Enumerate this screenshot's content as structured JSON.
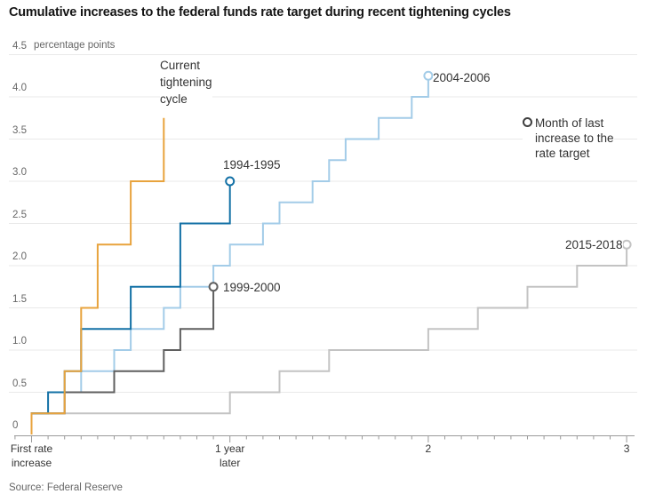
{
  "chart_data": {
    "type": "line",
    "step_style": "post",
    "title": "Cumulative increases to the federal funds rate target during recent tightening cycles",
    "source": "Source: Federal Reserve",
    "y_axis": {
      "unit_label": "percentage points",
      "min": 0,
      "max": 4.5,
      "grid": true,
      "ticks": [
        {
          "v": 4.5,
          "label": "4.5"
        },
        {
          "v": 4.0,
          "label": "4.0"
        },
        {
          "v": 3.5,
          "label": "3.5"
        },
        {
          "v": 3.0,
          "label": "3.0"
        },
        {
          "v": 2.5,
          "label": "2.5"
        },
        {
          "v": 2.0,
          "label": "2.0"
        },
        {
          "v": 1.5,
          "label": "1.5"
        },
        {
          "v": 1.0,
          "label": "1.0"
        },
        {
          "v": 0.5,
          "label": "0.5"
        },
        {
          "v": 0,
          "label": "0"
        }
      ]
    },
    "x_axis": {
      "min_month": -1,
      "max_month": 36,
      "minor_tick_every_months": 1,
      "major_tick_months": [
        0,
        12,
        24,
        36
      ],
      "labels": [
        {
          "month": 0,
          "text": "First rate\nincrease"
        },
        {
          "month": 12,
          "text": "1 year\nlater"
        },
        {
          "month": 24,
          "text": "2"
        },
        {
          "month": 36,
          "text": "3"
        }
      ]
    },
    "legend": {
      "marker": "open-circle",
      "marker_color": "#3f3f3f",
      "text": "Month of last\nincrease to the\nrate target"
    },
    "series": [
      {
        "name": "2015-2018",
        "color": "#C3C3C3",
        "end_marker": true,
        "points_month_cum": [
          [
            0,
            0.25
          ],
          [
            12,
            0.5
          ],
          [
            15,
            0.75
          ],
          [
            18,
            1.0
          ],
          [
            24,
            1.25
          ],
          [
            27,
            1.5
          ],
          [
            30,
            1.75
          ],
          [
            33,
            2.0
          ],
          [
            36,
            2.25
          ]
        ]
      },
      {
        "name": "2004-2006",
        "color": "#A3CCE8",
        "end_marker": true,
        "points_month_cum": [
          [
            0,
            0.25
          ],
          [
            2,
            0.5
          ],
          [
            3,
            0.75
          ],
          [
            5,
            1.0
          ],
          [
            6,
            1.25
          ],
          [
            8,
            1.5
          ],
          [
            9,
            1.75
          ],
          [
            11,
            2.0
          ],
          [
            12,
            2.25
          ],
          [
            14,
            2.5
          ],
          [
            15,
            2.75
          ],
          [
            17,
            3.0
          ],
          [
            18,
            3.25
          ],
          [
            19,
            3.5
          ],
          [
            21,
            3.75
          ],
          [
            23,
            4.0
          ],
          [
            24,
            4.25
          ]
        ]
      },
      {
        "name": "1999-2000",
        "color": "#5F5F5F",
        "end_marker": true,
        "points_month_cum": [
          [
            0,
            0.25
          ],
          [
            2,
            0.5
          ],
          [
            5,
            0.75
          ],
          [
            8,
            1.0
          ],
          [
            9,
            1.25
          ],
          [
            11,
            1.75
          ]
        ]
      },
      {
        "name": "1994-1995",
        "color": "#1371A6",
        "end_marker": true,
        "points_month_cum": [
          [
            0,
            0.25
          ],
          [
            1,
            0.5
          ],
          [
            2,
            0.75
          ],
          [
            3,
            1.25
          ],
          [
            6,
            1.75
          ],
          [
            9,
            2.5
          ],
          [
            12,
            3.0
          ]
        ]
      },
      {
        "name": "Current tightening cycle",
        "color": "#E8A33D",
        "end_marker": false,
        "points_month_cum": [
          [
            0,
            0.25
          ],
          [
            2,
            0.75
          ],
          [
            3,
            1.5
          ],
          [
            4,
            2.25
          ],
          [
            6,
            3.0
          ],
          [
            8,
            3.75
          ]
        ]
      }
    ],
    "annotations": [
      {
        "id": "current-cycle",
        "text": "Current\ntightening\ncycle"
      },
      {
        "id": "label-1994-1995",
        "text": "1994-1995"
      },
      {
        "id": "label-2004-2006",
        "text": "2004-2006"
      },
      {
        "id": "label-1999-2000",
        "text": "1999-2000"
      },
      {
        "id": "label-2015-2018",
        "text": "2015-2018"
      }
    ]
  }
}
